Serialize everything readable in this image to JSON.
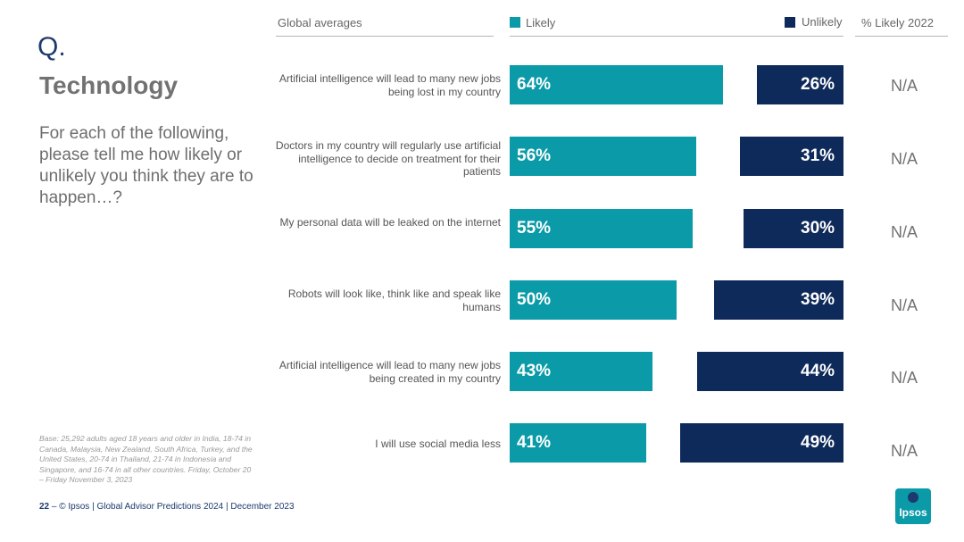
{
  "colors": {
    "likely": "#0b9aa7",
    "unlikely": "#0e2a5a",
    "accent": "#1d3a6e"
  },
  "left_panel": {
    "q_mark": "Q.",
    "title": "Technology",
    "question": "For each of the following, please tell me how likely or unlikely you think they are to happen…?",
    "base_note": "Base: 25,292 adults aged 18 years and older in India, 18-74 in Canada, Malaysia, New Zealand, South Africa, Turkey, and the United States, 20-74 in Thailand, 21-74 in Indonesia and Singapore, and 16-74 in all other countries. Friday, October 20 – Friday November 3, 2023"
  },
  "footer": {
    "page": "22",
    "dash": "–",
    "text": "© Ipsos | Global Advisor Predictions 2024 | December 2023"
  },
  "logo": {
    "text": "Ipsos"
  },
  "chart_data": {
    "type": "bar",
    "subtype": "diverging-horizontal",
    "header": "Global averages",
    "series_names": [
      "Likely",
      "Unlikely"
    ],
    "extra_column_header": "% Likely 2022",
    "categories": [
      "Artificial intelligence will lead to many new jobs being lost in my country",
      "Doctors in my country will regularly use artificial intelligence to decide on treatment for their patients",
      "My personal data will be leaked on the internet",
      "Robots will look like, think like and speak like humans",
      "Artificial intelligence will lead to many new jobs being created in my country",
      "I will use social media less"
    ],
    "series": [
      {
        "name": "Likely",
        "values": [
          64,
          56,
          55,
          50,
          43,
          41
        ]
      },
      {
        "name": "Unlikely",
        "values": [
          26,
          31,
          30,
          39,
          44,
          49
        ]
      }
    ],
    "likely_2022": [
      "N/A",
      "N/A",
      "N/A",
      "N/A",
      "N/A",
      "N/A"
    ],
    "unit": "%"
  }
}
